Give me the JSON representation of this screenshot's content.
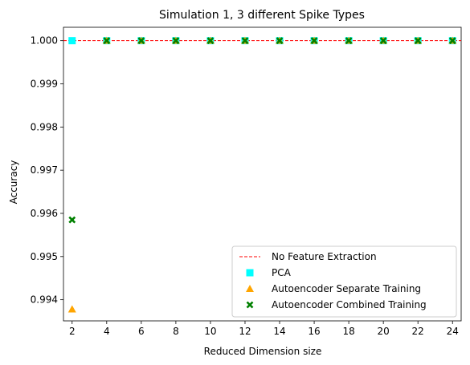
{
  "chart_data": {
    "type": "scatter",
    "title": "Simulation 1, 3 different Spike Types",
    "xlabel": "Reduced Dimension size",
    "ylabel": "Accuracy",
    "xlim": [
      1.5,
      24.5
    ],
    "ylim": [
      0.99351,
      1.00031
    ],
    "xticks": [
      2,
      4,
      6,
      8,
      10,
      12,
      14,
      16,
      18,
      20,
      22,
      24
    ],
    "yticks": [
      0.994,
      0.995,
      0.996,
      0.997,
      0.998,
      0.999,
      1.0
    ],
    "ytick_labels": [
      "0.994",
      "0.995",
      "0.996",
      "0.997",
      "0.998",
      "0.999",
      "1.000"
    ],
    "legend_position": "lower-right",
    "series": [
      {
        "name": "No Feature Extraction",
        "kind": "hline",
        "y": 1.0,
        "color": "#ff0000",
        "style": "dashed"
      },
      {
        "name": "PCA",
        "kind": "marker",
        "marker": "square",
        "color": "#00ffff",
        "x": [
          2,
          4,
          6,
          8,
          10,
          12,
          14,
          16,
          18,
          20,
          22,
          24
        ],
        "y": [
          1.0,
          1.0,
          1.0,
          1.0,
          1.0,
          1.0,
          1.0,
          1.0,
          1.0,
          1.0,
          1.0,
          1.0
        ]
      },
      {
        "name": "Autoencoder Separate Training",
        "kind": "marker",
        "marker": "triangle",
        "color": "#ffa500",
        "x": [
          2,
          4,
          6,
          8,
          10,
          12,
          14,
          16,
          18,
          20,
          22,
          24
        ],
        "y": [
          0.99378,
          1.0,
          1.0,
          1.0,
          1.0,
          1.0,
          1.0,
          1.0,
          1.0,
          1.0,
          1.0,
          1.0
        ]
      },
      {
        "name": "Autoencoder Combined Training",
        "kind": "marker",
        "marker": "x",
        "color": "#008000",
        "x": [
          2,
          4,
          6,
          8,
          10,
          12,
          14,
          16,
          18,
          20,
          22,
          24
        ],
        "y": [
          0.99585,
          1.0,
          1.0,
          1.0,
          1.0,
          1.0,
          1.0,
          1.0,
          1.0,
          1.0,
          1.0,
          1.0
        ]
      }
    ]
  }
}
